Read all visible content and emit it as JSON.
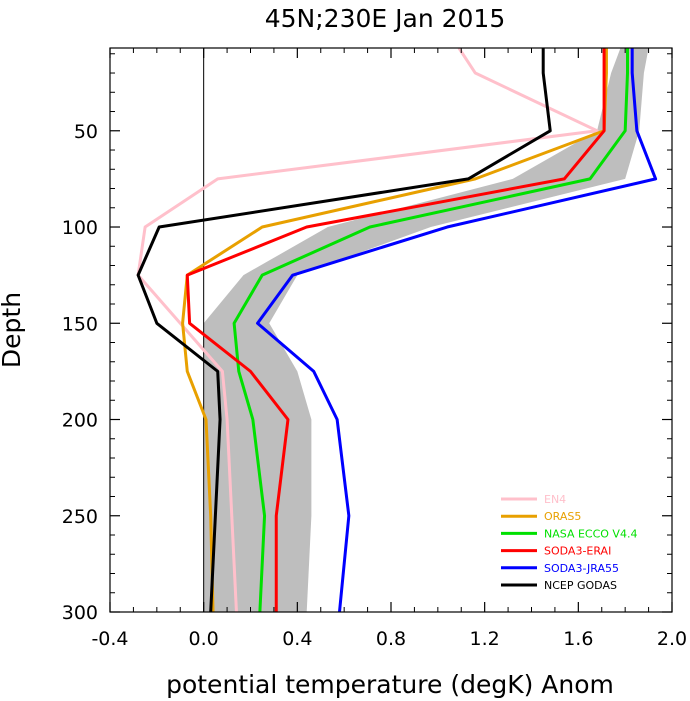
{
  "chart_data": {
    "type": "line",
    "title": "45N;230E Jan 2015",
    "xlabel": "potential temperature (degK)  Anom",
    "ylabel": "Depth",
    "xlim": [
      -0.4,
      2.0
    ],
    "ylim": [
      300,
      7
    ],
    "y_inverted": true,
    "x_ticks": [
      "-0.4",
      "0.0",
      "0.4",
      "0.8",
      "1.2",
      "1.6",
      "2.0"
    ],
    "y_ticks": [
      "50",
      "100",
      "150",
      "200",
      "250",
      "300"
    ],
    "zero_line": true,
    "grid": false,
    "legend_position": "bottom-right",
    "spread_band": {
      "color": "#bebebe",
      "left": [
        [
          1.78,
          7
        ],
        [
          1.74,
          20
        ],
        [
          1.68,
          50
        ],
        [
          1.32,
          75
        ],
        [
          0.53,
          100
        ],
        [
          0.17,
          125
        ],
        [
          0.0,
          150
        ],
        [
          0.0,
          175
        ],
        [
          0.0,
          200
        ],
        [
          0.0,
          250
        ],
        [
          0.0,
          300
        ]
      ],
      "right": [
        [
          1.9,
          7
        ],
        [
          1.88,
          20
        ],
        [
          1.86,
          50
        ],
        [
          1.8,
          75
        ],
        [
          0.97,
          100
        ],
        [
          0.4,
          125
        ],
        [
          0.28,
          150
        ],
        [
          0.4,
          175
        ],
        [
          0.46,
          200
        ],
        [
          0.46,
          250
        ],
        [
          0.44,
          300
        ]
      ]
    },
    "series": [
      {
        "name": "EN4",
        "color": "#ffc0cb",
        "x": [
          1.09,
          1.16,
          1.68,
          0.06,
          -0.25,
          -0.28,
          -0.1,
          0.08,
          0.1,
          0.12,
          0.14
        ],
        "y": [
          7,
          20,
          50,
          75,
          100,
          125,
          150,
          175,
          200,
          250,
          300
        ]
      },
      {
        "name": "ORAS5",
        "color": "#e8a000",
        "x": [
          1.72,
          1.72,
          1.71,
          1.16,
          0.25,
          -0.07,
          -0.09,
          -0.07,
          0.01,
          0.03,
          0.04
        ],
        "y": [
          7,
          20,
          50,
          75,
          100,
          125,
          150,
          175,
          200,
          250,
          300
        ]
      },
      {
        "name": "NASA ECCO V4.4",
        "color": "#00e000",
        "x": [
          1.81,
          1.81,
          1.8,
          1.65,
          0.71,
          0.25,
          0.13,
          0.15,
          0.21,
          0.26,
          0.24
        ],
        "y": [
          7,
          20,
          50,
          75,
          100,
          125,
          150,
          175,
          200,
          250,
          300
        ]
      },
      {
        "name": "SODA3-ERAI",
        "color": "#ff0000",
        "x": [
          1.71,
          1.71,
          1.71,
          1.54,
          0.44,
          -0.07,
          -0.06,
          0.2,
          0.36,
          0.31,
          0.31
        ],
        "y": [
          7,
          20,
          50,
          75,
          100,
          125,
          150,
          175,
          200,
          250,
          300
        ]
      },
      {
        "name": "SODA3-JRA55",
        "color": "#0000ff",
        "x": [
          1.83,
          1.83,
          1.85,
          1.93,
          1.04,
          0.38,
          0.23,
          0.47,
          0.57,
          0.62,
          0.58
        ],
        "y": [
          7,
          20,
          50,
          75,
          100,
          125,
          150,
          175,
          200,
          250,
          300
        ]
      },
      {
        "name": "NCEP GODAS",
        "color": "#000000",
        "x": [
          1.45,
          1.45,
          1.48,
          1.13,
          -0.19,
          -0.28,
          -0.2,
          0.06,
          0.07,
          0.05,
          0.03
        ],
        "y": [
          7,
          20,
          50,
          75,
          100,
          125,
          150,
          175,
          200,
          250,
          300
        ]
      }
    ]
  }
}
